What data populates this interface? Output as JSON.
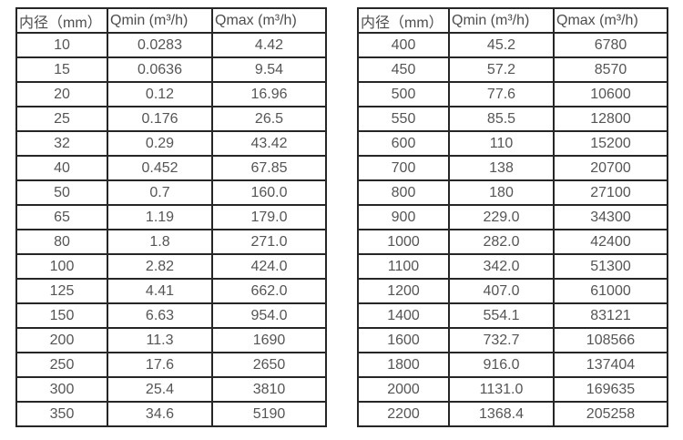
{
  "theme": {
    "background_color": "#ffffff",
    "border_color": "#262626",
    "text_color": "#555555"
  },
  "tables": [
    {
      "id": "flow-range-table-left",
      "headers": [
        "内径（mm）",
        "Qmin (m³/h)",
        "Qmax (m³/h)"
      ],
      "rows": [
        [
          "10",
          "0.0283",
          "4.42"
        ],
        [
          "15",
          "0.0636",
          "9.54"
        ],
        [
          "20",
          "0.12",
          "16.96"
        ],
        [
          "25",
          "0.176",
          "26.5"
        ],
        [
          "32",
          "0.29",
          "43.42"
        ],
        [
          "40",
          "0.452",
          "67.85"
        ],
        [
          "50",
          "0.7",
          "160.0"
        ],
        [
          "65",
          "1.19",
          "179.0"
        ],
        [
          "80",
          "1.8",
          "271.0"
        ],
        [
          "100",
          "2.82",
          "424.0"
        ],
        [
          "125",
          "4.41",
          "662.0"
        ],
        [
          "150",
          "6.63",
          "954.0"
        ],
        [
          "200",
          "11.3",
          "1690"
        ],
        [
          "250",
          "17.6",
          "2650"
        ],
        [
          "300",
          "25.4",
          "3810"
        ],
        [
          "350",
          "34.6",
          "5190"
        ]
      ]
    },
    {
      "id": "flow-range-table-right",
      "headers": [
        "内径（mm）",
        "Qmin (m³/h)",
        "Qmax (m³/h)"
      ],
      "rows": [
        [
          "400",
          "45.2",
          "6780"
        ],
        [
          "450",
          "57.2",
          "8570"
        ],
        [
          "500",
          "77.6",
          "10600"
        ],
        [
          "550",
          "85.5",
          "12800"
        ],
        [
          "600",
          "110",
          "15200"
        ],
        [
          "700",
          "138",
          "20700"
        ],
        [
          "800",
          "180",
          "27100"
        ],
        [
          "900",
          "229.0",
          "34300"
        ],
        [
          "1000",
          "282.0",
          "42400"
        ],
        [
          "1100",
          "342.0",
          "51300"
        ],
        [
          "1200",
          "407.0",
          "61000"
        ],
        [
          "1400",
          "554.1",
          "83121"
        ],
        [
          "1600",
          "732.7",
          "108566"
        ],
        [
          "1800",
          "916.0",
          "137404"
        ],
        [
          "2000",
          "1131.0",
          "169635"
        ],
        [
          "2200",
          "1368.4",
          "205258"
        ]
      ]
    }
  ]
}
